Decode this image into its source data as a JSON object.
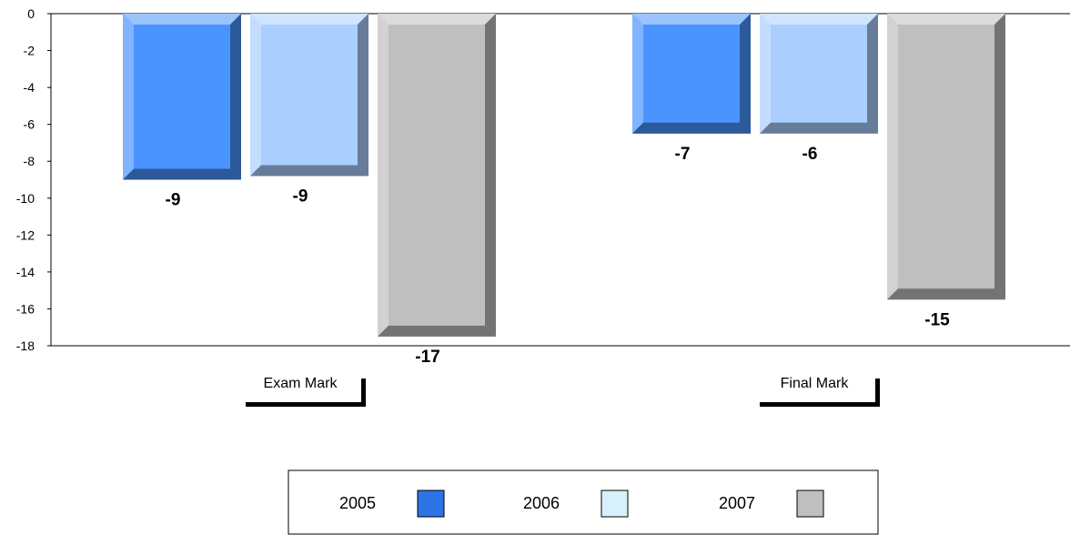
{
  "chart_data": {
    "type": "bar",
    "categories": [
      "Exam Mark",
      "Final Mark"
    ],
    "series": [
      {
        "name": "2005",
        "values": [
          -9,
          -6.5
        ],
        "labels": [
          "-9",
          "-7"
        ],
        "color": "#4a94ff"
      },
      {
        "name": "2006",
        "values": [
          -8.8,
          -6.5
        ],
        "labels": [
          "-9",
          "-6"
        ],
        "color": "#aacfff"
      },
      {
        "name": "2007",
        "values": [
          -17.5,
          -15.5
        ],
        "labels": [
          "-17",
          "-15"
        ],
        "color": "#bfbfbf"
      }
    ],
    "ylim": [
      -18,
      0
    ],
    "yticks": [
      0,
      -2,
      -4,
      -6,
      -8,
      -10,
      -12,
      -14,
      -16,
      -18
    ],
    "ytick_labels": [
      "0",
      "-2",
      "-4",
      "-6",
      "-8",
      "-10",
      "-12",
      "-14",
      "-16",
      "-18"
    ],
    "legend": {
      "position": "bottom-center",
      "entries": [
        {
          "label": "2005",
          "swatch_color": "#2c74e8"
        },
        {
          "label": "2006",
          "swatch_color": "#d7f0fa"
        },
        {
          "label": "2007",
          "swatch_color": "#bfbfbf"
        }
      ]
    },
    "grid": false,
    "bar_style": "3d-bevel"
  }
}
